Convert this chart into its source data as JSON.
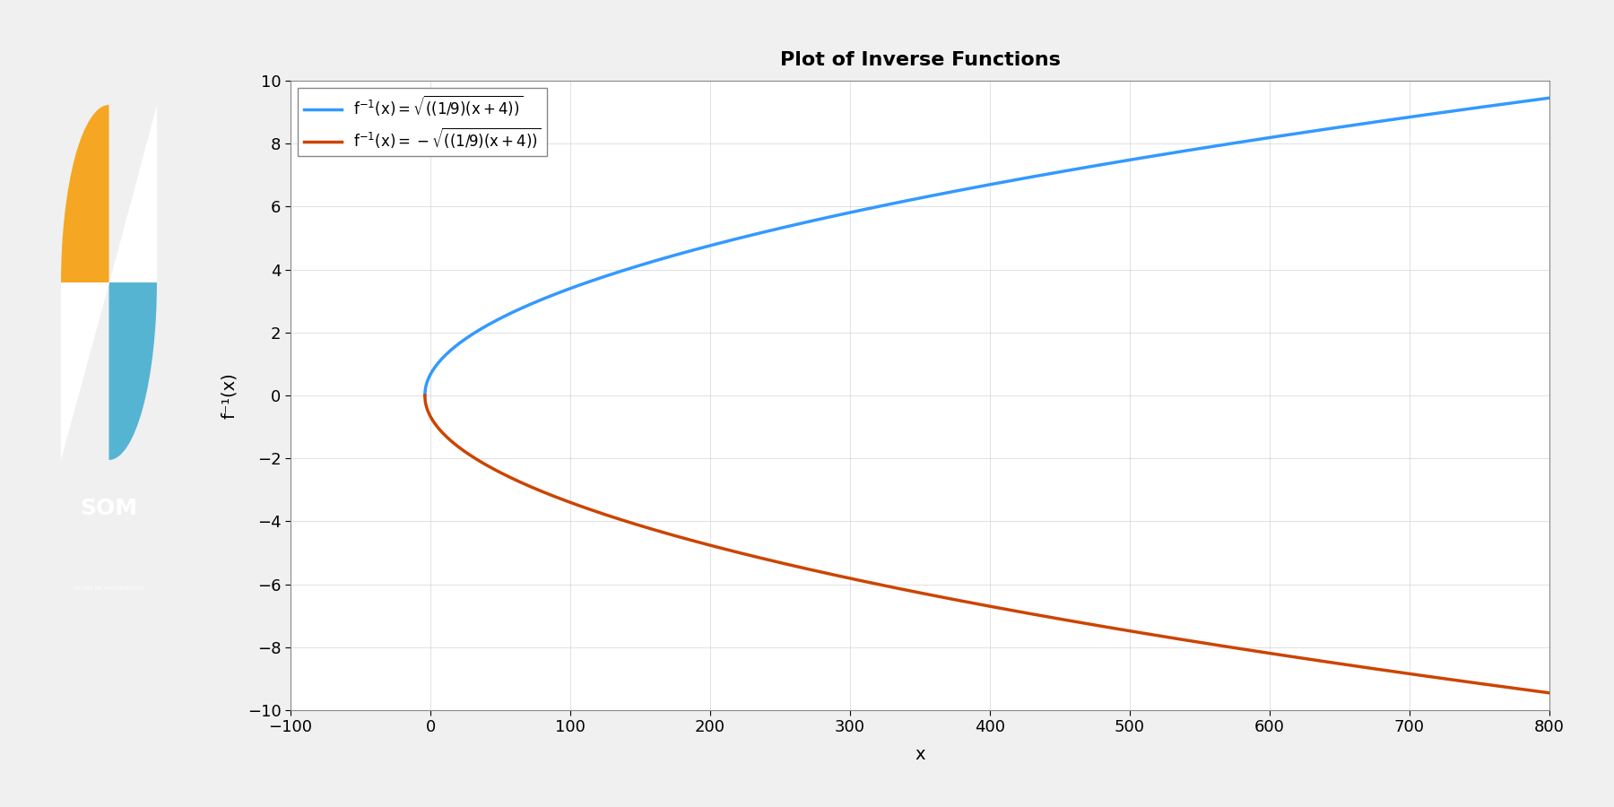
{
  "title": "Plot of Inverse Functions",
  "xlabel": "x",
  "ylabel": "f⁻¹(x)",
  "xlim": [
    -100,
    800
  ],
  "ylim": [
    -10,
    10
  ],
  "xticks": [
    -100,
    0,
    100,
    200,
    300,
    400,
    500,
    600,
    700,
    800
  ],
  "yticks": [
    -10,
    -8,
    -6,
    -4,
    -2,
    0,
    2,
    4,
    6,
    8,
    10
  ],
  "line1_color": "#3399ff",
  "line2_color": "#cc4400",
  "line1_label": "f⁻¹(x) = √((1/9)(x + 4))",
  "line2_label": "f⁻¹(x) = -√((1/9)(x + 4))",
  "line_width": 2.5,
  "bg_color": "#ffffff",
  "plot_bg_color": "#ffffff",
  "grid_color": "#cccccc",
  "logo_bg_color": "#2e3f4f",
  "header_bar_color": "#56b4d3",
  "footer_bar_color": "#56b4d3"
}
